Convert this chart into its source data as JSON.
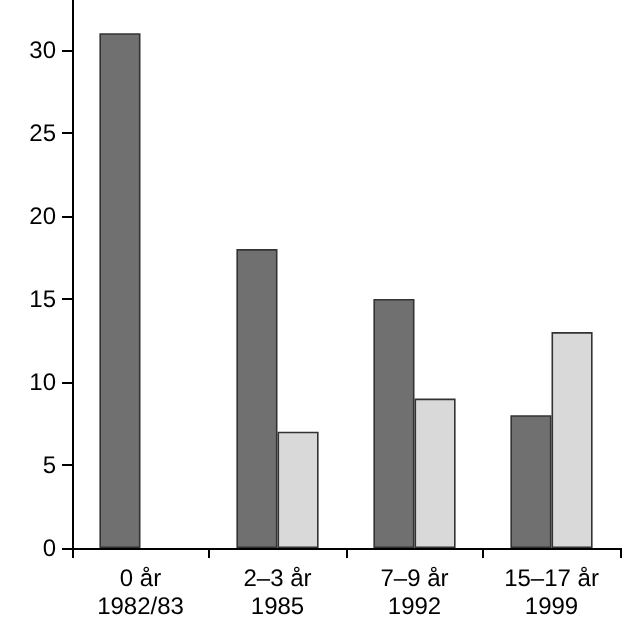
{
  "chart_data": {
    "type": "bar",
    "categories": [
      "0 år\n1982/83",
      "2–3 år\n1985",
      "7–9 år\n1992",
      "15–17 år\n1999"
    ],
    "series": [
      {
        "color": "#707070",
        "values": [
          31,
          18,
          15,
          8
        ]
      },
      {
        "color": "#d9d9d9",
        "values": [
          null,
          7,
          9,
          13
        ]
      }
    ],
    "ylim": [
      0,
      33
    ],
    "yticks": [
      0,
      5,
      10,
      15,
      20,
      25,
      30
    ],
    "grid": false
  }
}
